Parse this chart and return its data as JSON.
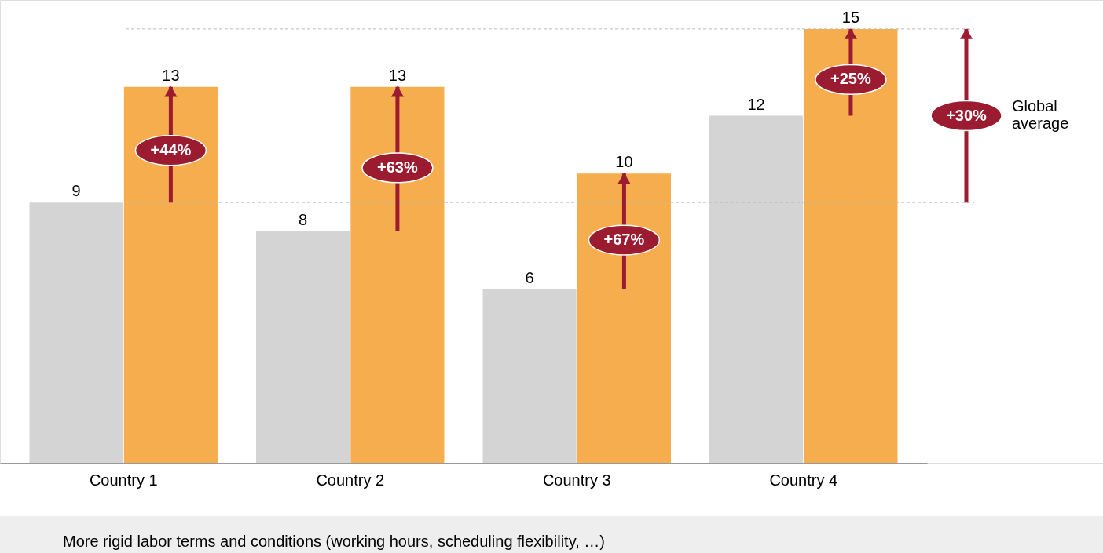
{
  "chart_data": {
    "type": "bar",
    "categories": [
      "Country 1",
      "Country 2",
      "Country 3",
      "Country 4"
    ],
    "series": [
      {
        "color": "#d4d4d4",
        "values": [
          9,
          8,
          6,
          12
        ]
      },
      {
        "color": "#f5ad4e",
        "values": [
          13,
          13,
          10,
          15
        ]
      }
    ],
    "ylim": [
      0,
      16
    ],
    "data_labels": true,
    "grid": false,
    "tick_labels": "x",
    "ref_lines": [
      {
        "axis": "y",
        "value": 9,
        "color": "#bbbbbb",
        "line_style": "dashed"
      },
      {
        "axis": "y",
        "value": 15,
        "color": "#bbbbbb",
        "line_style": "dashed"
      }
    ],
    "annotations": [
      {
        "text": "+44%",
        "x": "Country 1",
        "y": 10.8
      },
      {
        "text": "+63%",
        "x": "Country 2",
        "y": 10.2
      },
      {
        "text": "+67%",
        "x": "Country 3",
        "y": 7.7
      },
      {
        "text": "+25%",
        "x": "Country 4",
        "y": 13.25
      },
      "+30%",
      "Global average",
      "More rigid labor terms and conditions (working hours, scheduling flexibility, …)"
    ]
  }
}
